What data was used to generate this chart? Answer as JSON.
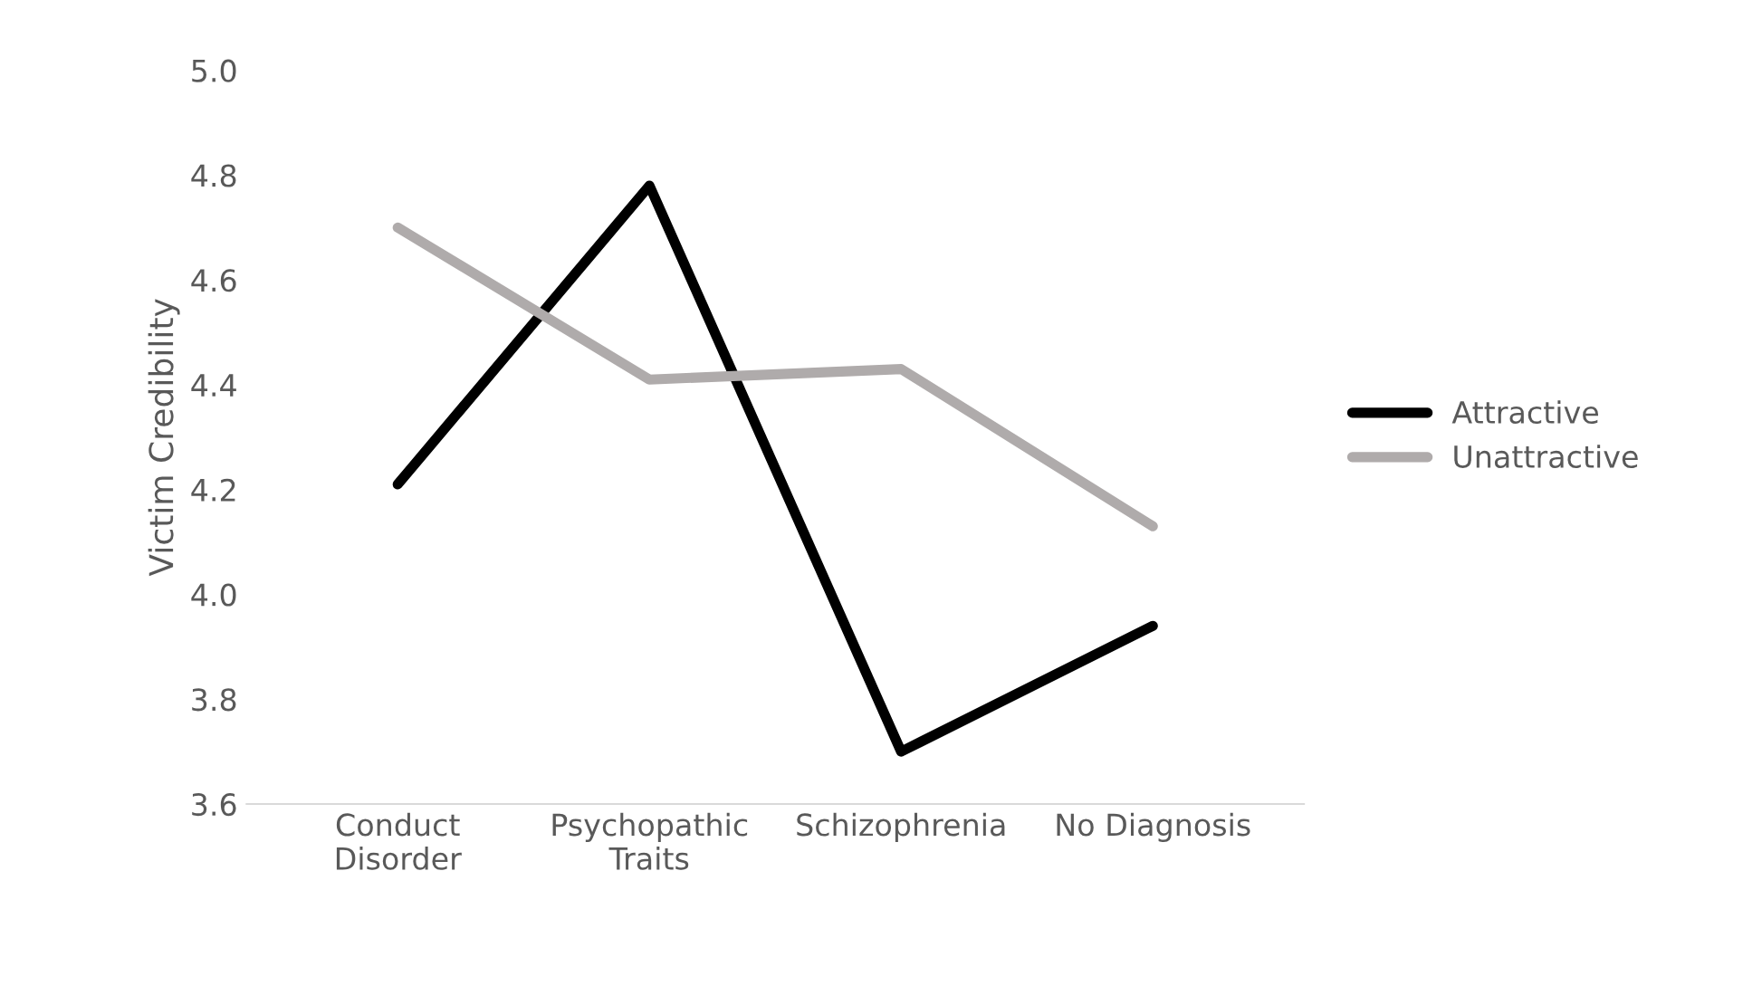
{
  "chart_data": {
    "type": "line",
    "ylabel": "Victim Credibility",
    "categories": [
      "Conduct\nDisorder",
      "Psychopathic\nTraits",
      "Schizophrenia",
      "No Diagnosis"
    ],
    "series": [
      {
        "name": "Attractive",
        "color": "#000000",
        "values": [
          4.21,
          4.78,
          3.7,
          3.94
        ]
      },
      {
        "name": "Unattractive",
        "color": "#afabab",
        "values": [
          4.7,
          4.41,
          4.43,
          4.13
        ]
      }
    ],
    "ylim": [
      3.6,
      5.0
    ],
    "yticks": [
      {
        "value": 3.6,
        "label": "3.6"
      },
      {
        "value": 3.8,
        "label": "3.8"
      },
      {
        "value": 4.0,
        "label": "4.0"
      },
      {
        "value": 4.2,
        "label": "4.2"
      },
      {
        "value": 4.4,
        "label": "4.4"
      },
      {
        "value": 4.6,
        "label": "4.6"
      },
      {
        "value": 4.8,
        "label": "4.8"
      },
      {
        "value": 5.0,
        "label": "5.0"
      }
    ],
    "grid": false,
    "legend": "right",
    "marker": "none",
    "line_style": "solid"
  }
}
